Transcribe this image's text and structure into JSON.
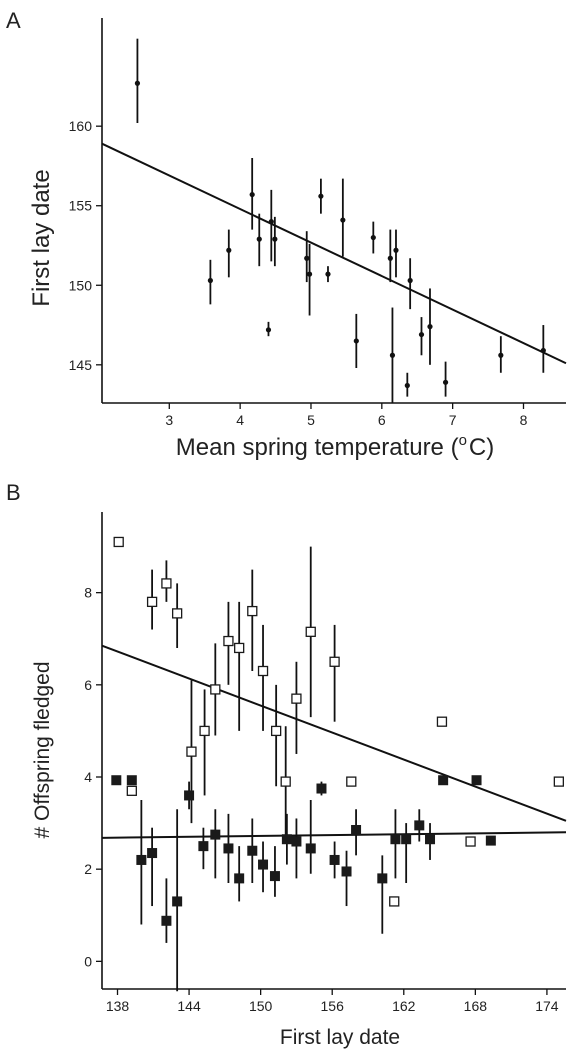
{
  "chart_data": [
    {
      "panel": "A",
      "type": "scatter",
      "xlabel": "Mean spring temperature (°C)",
      "xlabel_parts": {
        "main": "Mean spring temperature (",
        "sup": "o",
        "end": "C)"
      },
      "ylabel": "First lay date",
      "xlim": [
        2.05,
        8.6
      ],
      "ylim": [
        142.6,
        166.8
      ],
      "xticks": [
        3,
        4,
        5,
        6,
        7,
        8
      ],
      "yticks": [
        145,
        150,
        155,
        160
      ],
      "grid": false,
      "points": [
        {
          "x": 2.55,
          "y": 162.7,
          "lo": 160.2,
          "hi": 165.5
        },
        {
          "x": 3.58,
          "y": 150.3,
          "lo": 148.8,
          "hi": 151.6
        },
        {
          "x": 3.84,
          "y": 152.2,
          "lo": 150.5,
          "hi": 153.5
        },
        {
          "x": 4.17,
          "y": 155.7,
          "lo": 153.5,
          "hi": 158.0
        },
        {
          "x": 4.27,
          "y": 152.9,
          "lo": 151.2,
          "hi": 154.5
        },
        {
          "x": 4.4,
          "y": 147.2,
          "lo": 146.8,
          "hi": 147.7
        },
        {
          "x": 4.44,
          "y": 154.0,
          "lo": 151.5,
          "hi": 156.0
        },
        {
          "x": 4.49,
          "y": 152.9,
          "lo": 151.2,
          "hi": 154.3
        },
        {
          "x": 4.94,
          "y": 151.7,
          "lo": 150.2,
          "hi": 153.4
        },
        {
          "x": 4.98,
          "y": 150.7,
          "lo": 148.1,
          "hi": 152.6
        },
        {
          "x": 5.14,
          "y": 155.6,
          "lo": 154.5,
          "hi": 156.7
        },
        {
          "x": 5.24,
          "y": 150.7,
          "lo": 150.2,
          "hi": 151.2
        },
        {
          "x": 5.45,
          "y": 154.1,
          "lo": 151.8,
          "hi": 156.7
        },
        {
          "x": 5.64,
          "y": 146.5,
          "lo": 144.8,
          "hi": 148.2
        },
        {
          "x": 5.88,
          "y": 153.0,
          "lo": 152.0,
          "hi": 154.0
        },
        {
          "x": 6.12,
          "y": 151.7,
          "lo": 150.2,
          "hi": 153.5
        },
        {
          "x": 6.15,
          "y": 145.6,
          "lo": 142.6,
          "hi": 148.6
        },
        {
          "x": 6.2,
          "y": 152.2,
          "lo": 150.5,
          "hi": 153.5
        },
        {
          "x": 6.36,
          "y": 143.7,
          "lo": 143.0,
          "hi": 144.5
        },
        {
          "x": 6.4,
          "y": 150.3,
          "lo": 148.5,
          "hi": 151.7
        },
        {
          "x": 6.56,
          "y": 146.9,
          "lo": 145.6,
          "hi": 148.0
        },
        {
          "x": 6.68,
          "y": 147.4,
          "lo": 145.0,
          "hi": 149.8
        },
        {
          "x": 6.9,
          "y": 143.9,
          "lo": 143.0,
          "hi": 145.2
        },
        {
          "x": 7.68,
          "y": 145.6,
          "lo": 144.5,
          "hi": 146.8
        },
        {
          "x": 8.28,
          "y": 145.9,
          "lo": 144.5,
          "hi": 147.5
        }
      ],
      "fit": {
        "x1": 2.05,
        "y1": 158.9,
        "x2": 8.6,
        "y2": 145.1
      }
    },
    {
      "panel": "B",
      "type": "scatter",
      "xlabel": "First lay date",
      "ylabel": "# Offspring fledged",
      "xlim": [
        136.7,
        175.6
      ],
      "ylim": [
        -0.6,
        9.75
      ],
      "xticks": [
        138,
        144,
        150,
        156,
        162,
        168,
        174
      ],
      "yticks": [
        0,
        2,
        4,
        6,
        8
      ],
      "grid": false,
      "series": [
        {
          "marker": "open-square",
          "points": [
            {
              "x": 138.1,
              "y": 9.1
            },
            {
              "x": 139.2,
              "y": 3.7
            },
            {
              "x": 140.9,
              "y": 7.8,
              "lo": 7.2,
              "hi": 8.5
            },
            {
              "x": 142.1,
              "y": 8.2,
              "lo": 7.8,
              "hi": 8.7
            },
            {
              "x": 143.0,
              "y": 7.55,
              "lo": 6.8,
              "hi": 8.2
            },
            {
              "x": 144.2,
              "y": 4.55,
              "lo": 3.0,
              "hi": 6.1
            },
            {
              "x": 145.3,
              "y": 5.0,
              "lo": 3.6,
              "hi": 5.9
            },
            {
              "x": 146.2,
              "y": 5.9,
              "lo": 4.9,
              "hi": 6.9
            },
            {
              "x": 147.3,
              "y": 6.95,
              "lo": 6.0,
              "hi": 7.8
            },
            {
              "x": 148.2,
              "y": 6.8,
              "lo": 5.0,
              "hi": 7.8
            },
            {
              "x": 149.3,
              "y": 7.6,
              "lo": 6.3,
              "hi": 8.5
            },
            {
              "x": 150.2,
              "y": 6.3,
              "lo": 5.0,
              "hi": 7.3
            },
            {
              "x": 151.3,
              "y": 5.0,
              "lo": 3.8,
              "hi": 6.0
            },
            {
              "x": 152.1,
              "y": 3.9,
              "lo": 2.6,
              "hi": 5.1
            },
            {
              "x": 153.0,
              "y": 5.7,
              "lo": 4.5,
              "hi": 6.5
            },
            {
              "x": 154.2,
              "y": 7.15,
              "lo": 5.3,
              "hi": 9.0
            },
            {
              "x": 156.2,
              "y": 6.5,
              "lo": 5.2,
              "hi": 7.3
            },
            {
              "x": 157.6,
              "y": 3.9
            },
            {
              "x": 161.2,
              "y": 1.3
            },
            {
              "x": 165.2,
              "y": 5.2
            },
            {
              "x": 167.6,
              "y": 2.6
            },
            {
              "x": 175.0,
              "y": 3.9
            }
          ]
        },
        {
          "marker": "filled-square",
          "points": [
            {
              "x": 137.9,
              "y": 3.93
            },
            {
              "x": 139.2,
              "y": 3.93
            },
            {
              "x": 140.0,
              "y": 2.2,
              "lo": 0.8,
              "hi": 3.5
            },
            {
              "x": 140.9,
              "y": 2.35,
              "lo": 1.2,
              "hi": 2.9
            },
            {
              "x": 142.1,
              "y": 0.88,
              "lo": 0.4,
              "hi": 1.8
            },
            {
              "x": 143.0,
              "y": 1.3,
              "lo": -0.65,
              "hi": 3.3
            },
            {
              "x": 144.0,
              "y": 3.6,
              "lo": 3.3,
              "hi": 3.9
            },
            {
              "x": 145.2,
              "y": 2.5,
              "lo": 2.0,
              "hi": 2.9
            },
            {
              "x": 146.2,
              "y": 2.75,
              "lo": 1.8,
              "hi": 3.3
            },
            {
              "x": 147.3,
              "y": 2.45,
              "lo": 1.7,
              "hi": 3.2
            },
            {
              "x": 148.2,
              "y": 1.8,
              "lo": 1.3,
              "hi": 2.5
            },
            {
              "x": 149.3,
              "y": 2.4,
              "lo": 1.7,
              "hi": 3.1
            },
            {
              "x": 150.2,
              "y": 2.1,
              "lo": 1.5,
              "hi": 2.6
            },
            {
              "x": 151.2,
              "y": 1.85,
              "lo": 1.4,
              "hi": 2.5
            },
            {
              "x": 152.2,
              "y": 2.65,
              "lo": 2.1,
              "hi": 3.2
            },
            {
              "x": 153.0,
              "y": 2.6,
              "lo": 1.8,
              "hi": 3.1
            },
            {
              "x": 154.2,
              "y": 2.45,
              "lo": 1.9,
              "hi": 3.5
            },
            {
              "x": 155.1,
              "y": 3.75,
              "lo": 3.6,
              "hi": 3.9
            },
            {
              "x": 156.2,
              "y": 2.2,
              "lo": 1.8,
              "hi": 2.6
            },
            {
              "x": 157.2,
              "y": 1.95,
              "lo": 1.2,
              "hi": 2.4
            },
            {
              "x": 158.0,
              "y": 2.85,
              "lo": 2.3,
              "hi": 3.3
            },
            {
              "x": 160.2,
              "y": 1.8,
              "lo": 0.6,
              "hi": 2.3
            },
            {
              "x": 161.3,
              "y": 2.65,
              "lo": 1.8,
              "hi": 3.3
            },
            {
              "x": 162.2,
              "y": 2.65,
              "lo": 1.7,
              "hi": 3.0
            },
            {
              "x": 163.3,
              "y": 2.95,
              "lo": 2.6,
              "hi": 3.3
            },
            {
              "x": 164.2,
              "y": 2.65,
              "lo": 2.2,
              "hi": 3.0
            },
            {
              "x": 165.3,
              "y": 3.93
            },
            {
              "x": 168.1,
              "y": 3.93
            },
            {
              "x": 169.3,
              "y": 2.62
            }
          ]
        }
      ],
      "fits": [
        {
          "series": "open-square",
          "x1": 136.7,
          "y1": 6.85,
          "x2": 175.6,
          "y2": 3.05
        },
        {
          "series": "filled-square",
          "x1": 136.7,
          "y1": 2.68,
          "x2": 175.6,
          "y2": 2.8
        }
      ]
    }
  ]
}
